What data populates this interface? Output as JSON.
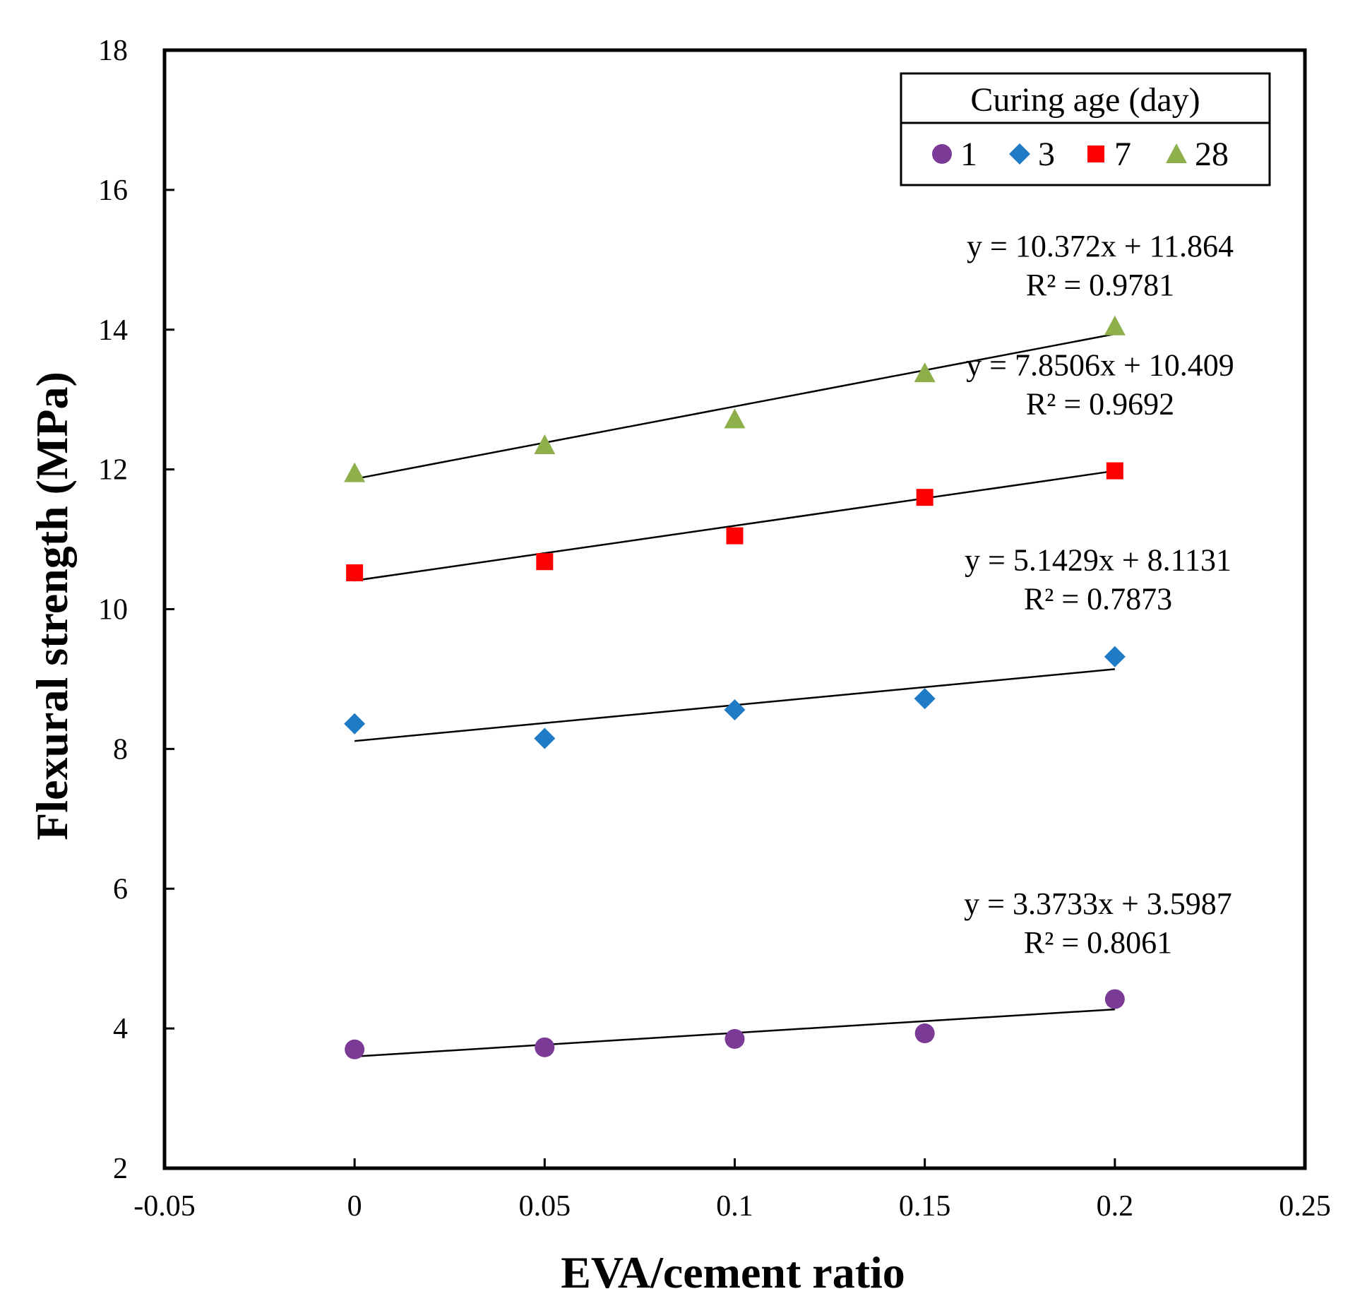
{
  "chart_data": {
    "type": "scatter",
    "xlabel": "EVA/cement ratio",
    "ylabel": "Flexural strength (MPa)",
    "xlim": [
      -0.05,
      0.25
    ],
    "ylim": [
      2,
      18
    ],
    "xticks": [
      -0.05,
      0,
      0.05,
      0.1,
      0.15,
      0.2,
      0.25
    ],
    "xtick_labels": [
      "-0.05",
      "0",
      "0.05",
      "0.1",
      "0.15",
      "0.2",
      "0.25"
    ],
    "yticks": [
      2,
      4,
      6,
      8,
      10,
      12,
      14,
      16,
      18
    ],
    "ytick_labels": [
      "2",
      "4",
      "6",
      "8",
      "10",
      "12",
      "14",
      "16",
      "18"
    ],
    "grid": false,
    "legend": {
      "title": "Curing age (day)",
      "position": "top-right"
    },
    "series": [
      {
        "name": "1",
        "marker": "circle",
        "color": "#7B3A96",
        "x": [
          0,
          0.05,
          0.1,
          0.15,
          0.2
        ],
        "y": [
          3.7,
          3.73,
          3.85,
          3.93,
          4.42
        ],
        "trendline": {
          "slope": 3.3733,
          "intercept": 3.5987,
          "equation": "y = 3.3733x + 3.5987",
          "r2": "R² = 0.8061"
        }
      },
      {
        "name": "3",
        "marker": "diamond",
        "color": "#1F7BC6",
        "x": [
          0,
          0.05,
          0.1,
          0.15,
          0.2
        ],
        "y": [
          8.36,
          8.15,
          8.56,
          8.72,
          9.32
        ],
        "trendline": {
          "slope": 5.1429,
          "intercept": 8.1131,
          "equation": "y = 5.1429x + 8.1131",
          "r2": "R² = 0.7873"
        }
      },
      {
        "name": "7",
        "marker": "square",
        "color": "#FF0000",
        "x": [
          0,
          0.05,
          0.1,
          0.15,
          0.2
        ],
        "y": [
          10.52,
          10.68,
          11.05,
          11.6,
          11.98
        ],
        "trendline": {
          "slope": 7.8506,
          "intercept": 10.409,
          "equation": "y = 7.8506x + 10.409",
          "r2": "R² = 0.9692"
        }
      },
      {
        "name": "28",
        "marker": "triangle",
        "color": "#8DB04A",
        "x": [
          0,
          0.05,
          0.1,
          0.15,
          0.2
        ],
        "y": [
          11.95,
          12.35,
          12.72,
          13.38,
          14.05
        ],
        "trendline": {
          "slope": 10.372,
          "intercept": 11.864,
          "equation": "y = 10.372x + 11.864",
          "r2": "R² = 0.9781"
        }
      }
    ]
  }
}
